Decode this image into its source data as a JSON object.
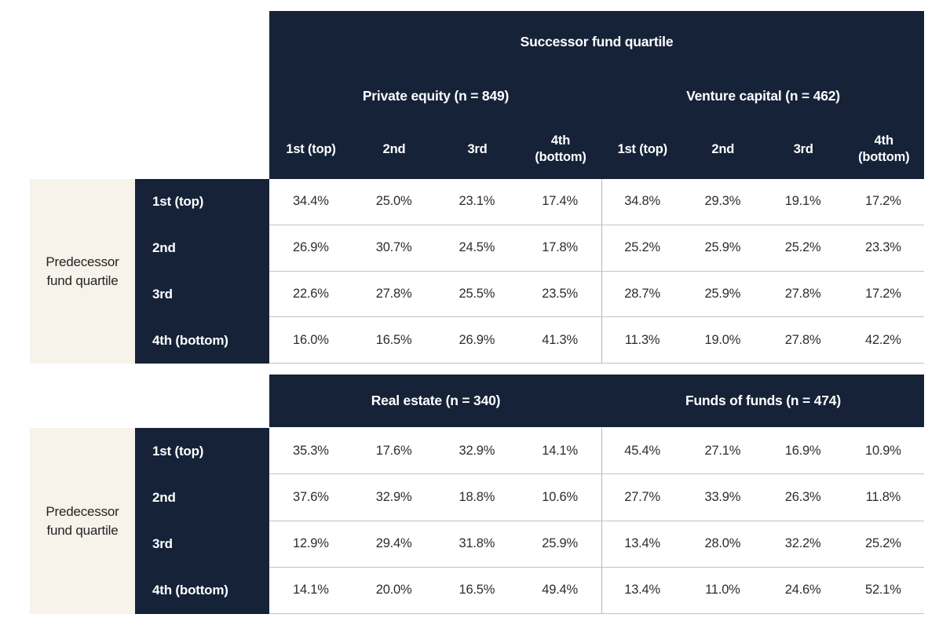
{
  "colors": {
    "navy": "#152238",
    "cream": "#f7f2ea",
    "row_line": "#c3c3c3",
    "group_divider": "#b5b5b5",
    "data_text": "#2d2d2d",
    "header_text": "#ffffff"
  },
  "shared": {
    "title": "Successor fund quartile",
    "axis_label": "Predecessor fund quartile",
    "cols": [
      "1st (top)",
      "2nd",
      "3rd",
      "4th (bottom)"
    ],
    "rows": [
      "1st (top)",
      "2nd",
      "3rd",
      "4th (bottom)"
    ]
  },
  "t1": {
    "group1_label": "Private equity (n = 849)",
    "group2_label": "Venture capital (n = 462)",
    "cells": [
      [
        "34.4%",
        "25.0%",
        "23.1%",
        "17.4%",
        "34.8%",
        "29.3%",
        "19.1%",
        "17.2%"
      ],
      [
        "26.9%",
        "30.7%",
        "24.5%",
        "17.8%",
        "25.2%",
        "25.9%",
        "25.2%",
        "23.3%"
      ],
      [
        "22.6%",
        "27.8%",
        "25.5%",
        "23.5%",
        "28.7%",
        "25.9%",
        "27.8%",
        "17.2%"
      ],
      [
        "16.0%",
        "16.5%",
        "26.9%",
        "41.3%",
        "11.3%",
        "19.0%",
        "27.8%",
        "42.2%"
      ]
    ]
  },
  "t2": {
    "group1_label": "Real estate (n = 340)",
    "group2_label": "Funds of funds (n = 474)",
    "cells": [
      [
        "35.3%",
        "17.6%",
        "32.9%",
        "14.1%",
        "45.4%",
        "27.1%",
        "16.9%",
        "10.9%"
      ],
      [
        "37.6%",
        "32.9%",
        "18.8%",
        "10.6%",
        "27.7%",
        "33.9%",
        "26.3%",
        "11.8%"
      ],
      [
        "12.9%",
        "29.4%",
        "31.8%",
        "25.9%",
        "13.4%",
        "28.0%",
        "32.2%",
        "25.2%"
      ],
      [
        "14.1%",
        "20.0%",
        "16.5%",
        "49.4%",
        "13.4%",
        "11.0%",
        "24.6%",
        "52.1%"
      ]
    ]
  },
  "chart_data": {
    "type": "table",
    "title": "Successor fund quartile",
    "row_axis_label": "Predecessor fund quartile",
    "row_labels": [
      "1st (top)",
      "2nd",
      "3rd",
      "4th (bottom)"
    ],
    "col_labels": [
      "1st (top)",
      "2nd",
      "3rd",
      "4th (bottom)"
    ],
    "groups": [
      {
        "name": "Private equity",
        "n": 849,
        "values_pct": [
          [
            34.4,
            25.0,
            23.1,
            17.4
          ],
          [
            26.9,
            30.7,
            24.5,
            17.8
          ],
          [
            22.6,
            27.8,
            25.5,
            23.5
          ],
          [
            16.0,
            16.5,
            26.9,
            41.3
          ]
        ]
      },
      {
        "name": "Venture capital",
        "n": 462,
        "values_pct": [
          [
            34.8,
            29.3,
            19.1,
            17.2
          ],
          [
            25.2,
            25.9,
            25.2,
            23.3
          ],
          [
            28.7,
            25.9,
            27.8,
            17.2
          ],
          [
            11.3,
            19.0,
            27.8,
            42.2
          ]
        ]
      },
      {
        "name": "Real estate",
        "n": 340,
        "values_pct": [
          [
            35.3,
            17.6,
            32.9,
            14.1
          ],
          [
            37.6,
            32.9,
            18.8,
            10.6
          ],
          [
            12.9,
            29.4,
            31.8,
            25.9
          ],
          [
            14.1,
            20.0,
            16.5,
            49.4
          ]
        ]
      },
      {
        "name": "Funds of funds",
        "n": 474,
        "values_pct": [
          [
            45.4,
            27.1,
            16.9,
            10.9
          ],
          [
            27.7,
            33.9,
            26.3,
            11.8
          ],
          [
            13.4,
            28.0,
            32.2,
            25.2
          ],
          [
            13.4,
            11.0,
            24.6,
            52.1
          ]
        ]
      }
    ]
  }
}
